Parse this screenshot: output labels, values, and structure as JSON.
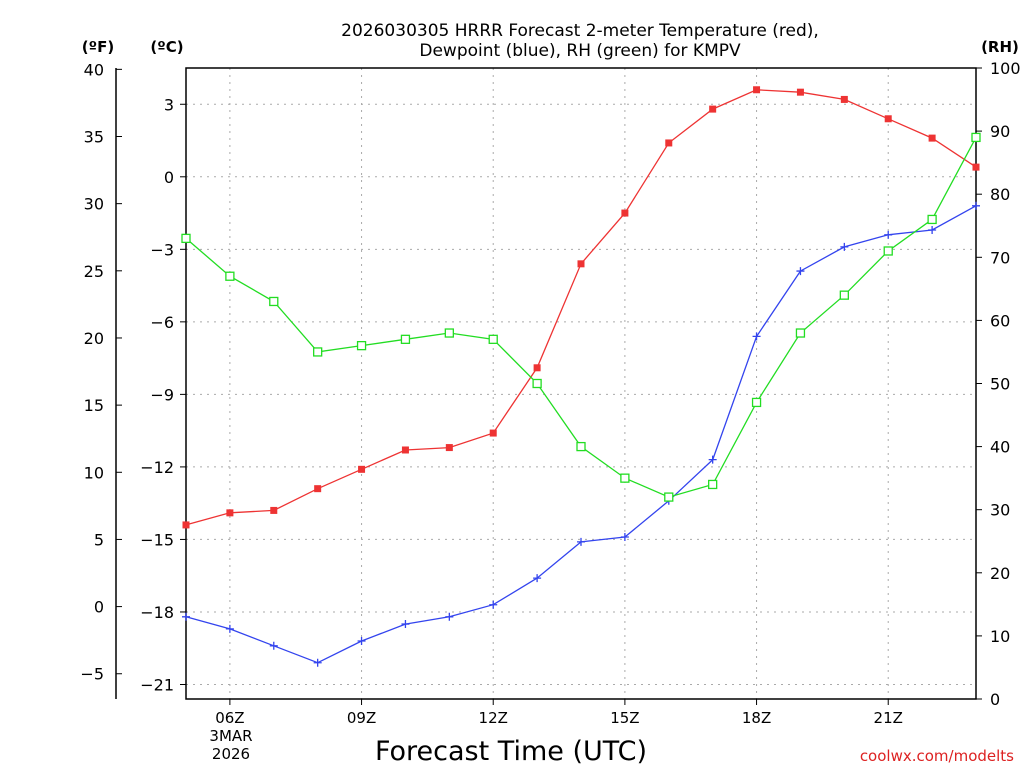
{
  "chart_data": {
    "type": "line",
    "title": "2026030305 HRRR Forecast 2-meter Temperature (red),",
    "subtitle": "Dewpoint (blue), RH (green) for KMPV",
    "xlabel": "Forecast Time (UTC)",
    "watermark": "coolwx.com/modelts",
    "units": {
      "fahrenheit": "(ºF)",
      "celsius": "(ºC)",
      "rh": "(RH)"
    },
    "date_label": {
      "day": "3MAR",
      "year": "2026"
    },
    "x_hours": [
      5,
      6,
      7,
      8,
      9,
      10,
      11,
      12,
      13,
      14,
      15,
      16,
      17,
      18,
      19,
      20,
      21,
      22,
      23
    ],
    "xlim": [
      5,
      23
    ],
    "x_ticks": [
      {
        "hour": 6,
        "label": "06Z"
      },
      {
        "hour": 9,
        "label": "09Z"
      },
      {
        "hour": 12,
        "label": "12Z"
      },
      {
        "hour": 15,
        "label": "15Z"
      },
      {
        "hour": 18,
        "label": "18Z"
      },
      {
        "hour": 21,
        "label": "21Z"
      }
    ],
    "y_celsius": {
      "lim": [
        -21.6,
        4.5
      ],
      "ticks": [
        3,
        0,
        -3,
        -6,
        -9,
        -12,
        -15,
        -18,
        -21
      ],
      "tick_labels": [
        "3",
        "0",
        "−3",
        "−6",
        "−9",
        "−12",
        "−15",
        "−18",
        "−21"
      ]
    },
    "y_fahrenheit": {
      "ticks": [
        40,
        35,
        30,
        25,
        20,
        15,
        10,
        5,
        0,
        -5
      ],
      "tick_labels": [
        "40",
        "35",
        "30",
        "25",
        "20",
        "15",
        "10",
        "5",
        "0",
        "−5"
      ]
    },
    "y_rh": {
      "lim": [
        0,
        100
      ],
      "ticks": [
        100,
        90,
        80,
        70,
        60,
        50,
        40,
        30,
        20,
        10,
        0
      ],
      "tick_labels": [
        "100",
        "90",
        "80",
        "70",
        "60",
        "50",
        "40",
        "30",
        "20",
        "10",
        "0"
      ]
    },
    "series": [
      {
        "name": "2-meter Temperature",
        "unit": "°C",
        "axis": "celsius",
        "color": "#ee3333",
        "marker": "filled-square",
        "values": [
          -14.4,
          -13.9,
          -13.8,
          -12.9,
          -12.1,
          -11.3,
          -11.2,
          -10.6,
          -7.9,
          -3.6,
          -1.5,
          1.4,
          2.8,
          3.6,
          3.5,
          3.2,
          2.4,
          1.6,
          0.4
        ]
      },
      {
        "name": "Dewpoint",
        "unit": "°C",
        "axis": "celsius",
        "color": "#3344ee",
        "marker": "plus",
        "values": [
          -18.2,
          -18.7,
          -19.4,
          -20.1,
          -19.2,
          -18.5,
          -18.2,
          -17.7,
          -16.6,
          -15.1,
          -14.9,
          -13.4,
          -11.7,
          -6.6,
          -3.9,
          -2.9,
          -2.4,
          -2.2,
          -1.2
        ]
      },
      {
        "name": "Relative Humidity",
        "unit": "%",
        "axis": "rh",
        "color": "#22dd22",
        "marker": "open-square",
        "values": [
          73,
          67,
          63,
          55,
          56,
          57,
          58,
          57,
          50,
          40,
          35,
          32,
          34,
          47,
          58,
          64,
          71,
          76,
          89
        ]
      }
    ]
  }
}
